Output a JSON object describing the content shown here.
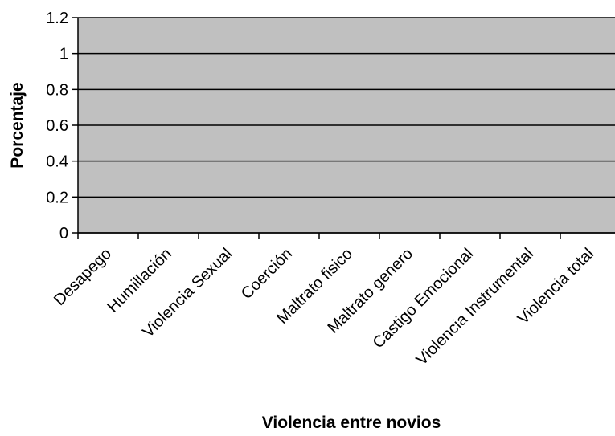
{
  "chart_data": {
    "type": "bar",
    "title": "",
    "xlabel": "Violencia entre novios",
    "ylabel": "Porcentaje",
    "categories": [
      "Desapego",
      "Humillación",
      "Violencia Sexual",
      "Coerción",
      "Maltrato fisico",
      "Maltrato genero",
      "Castigo Emocional",
      "Violencia Instrumental",
      "Violencia total"
    ],
    "values": [
      0,
      0,
      0,
      0,
      0,
      0,
      0,
      0,
      0
    ],
    "ylim": [
      0,
      1.2
    ],
    "yticks": [
      "0",
      "0.2",
      "0.4",
      "0.6",
      "0.8",
      "1",
      "1.2"
    ],
    "grid": true,
    "legend": "none",
    "colors": {
      "plot_background": "#c0c0c0",
      "gridline": "#000000",
      "bar": "#000000"
    }
  }
}
